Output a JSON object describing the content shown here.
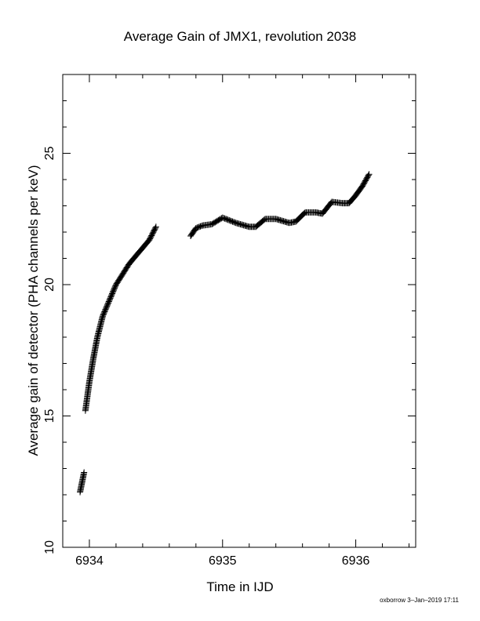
{
  "chart_data": {
    "type": "scatter",
    "title": "Average Gain of JMX1, revolution 2038",
    "xlabel": "Time in IJD",
    "ylabel": "Average gain of detector (PHA channels per keV)",
    "footer": "oxborrow  3–Jan–2019 17:11",
    "xlim": [
      6933.8,
      6936.45
    ],
    "ylim": [
      10,
      28
    ],
    "x_ticks": [
      6934,
      6935,
      6936
    ],
    "y_ticks": [
      10,
      15,
      20,
      25
    ],
    "x_minor_step": 0.2,
    "y_minor_step": 1,
    "marker": "plus",
    "marker_color": "#000000",
    "grid": false,
    "segments": [
      {
        "x": [
          6933.93,
          6933.96
        ],
        "y": [
          12.1,
          12.85
        ]
      },
      {
        "x": [
          6933.97,
          6934.0,
          6934.03,
          6934.06,
          6934.1,
          6934.15,
          6934.2,
          6934.25,
          6934.3,
          6934.35,
          6934.4,
          6934.45,
          6934.5
        ],
        "y": [
          15.2,
          16.3,
          17.2,
          18.0,
          18.8,
          19.4,
          20.0,
          20.4,
          20.8,
          21.1,
          21.4,
          21.7,
          22.2
        ]
      },
      {
        "x": [
          6934.76,
          6934.8,
          6934.85,
          6934.92,
          6935.0,
          6935.1,
          6935.2,
          6935.25,
          6935.32,
          6935.4,
          6935.5,
          6935.55,
          6935.62,
          6935.7,
          6935.75,
          6935.82,
          6935.9,
          6935.95,
          6936.0,
          6936.05,
          6936.1
        ],
        "y": [
          21.85,
          22.15,
          22.25,
          22.3,
          22.55,
          22.35,
          22.2,
          22.2,
          22.5,
          22.5,
          22.35,
          22.4,
          22.75,
          22.75,
          22.7,
          23.15,
          23.1,
          23.1,
          23.4,
          23.75,
          24.2
        ]
      }
    ]
  }
}
